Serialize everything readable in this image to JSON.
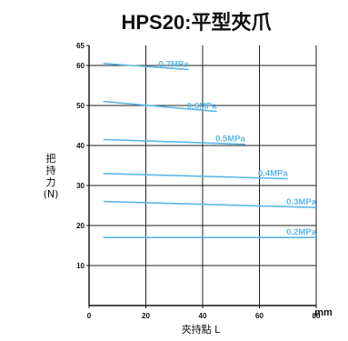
{
  "chart_data": {
    "type": "line",
    "title": "HPS20:平型夾爪",
    "xlabel": "夾持點 L",
    "xunit": "mm",
    "ylabel_lines": [
      "把",
      "持",
      "力",
      "(N)"
    ],
    "xlim": [
      0,
      80
    ],
    "ylim": [
      0,
      65
    ],
    "xticks": [
      0,
      20,
      40,
      60,
      80
    ],
    "yticks": [
      10,
      20,
      30,
      40,
      50,
      60,
      65
    ],
    "grid": true,
    "line_color": "#5bb8e6",
    "series": [
      {
        "name": "0.7MPa",
        "x": [
          5,
          35
        ],
        "y": [
          60.5,
          59
        ]
      },
      {
        "name": "0.6MPa",
        "x": [
          5,
          45
        ],
        "y": [
          51,
          48.5
        ]
      },
      {
        "name": "0.5MPa",
        "x": [
          5,
          55
        ],
        "y": [
          41.5,
          40.3
        ]
      },
      {
        "name": "0.4MPa",
        "x": [
          5,
          70
        ],
        "y": [
          33,
          31.7
        ]
      },
      {
        "name": "0.3MPa",
        "x": [
          5,
          80
        ],
        "y": [
          26,
          24.5
        ]
      },
      {
        "name": "0.2MPa",
        "x": [
          5,
          80
        ],
        "y": [
          17,
          17
        ]
      }
    ]
  }
}
